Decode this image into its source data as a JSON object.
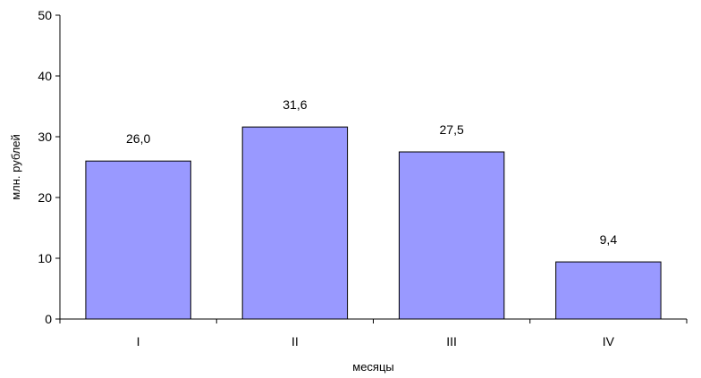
{
  "chart_data": {
    "type": "bar",
    "categories": [
      "I",
      "II",
      "III",
      "IV"
    ],
    "values": [
      26.0,
      31.6,
      27.5,
      9.4
    ],
    "value_labels": [
      "26,0",
      "31,6",
      "27,5",
      "9,4"
    ],
    "title": "",
    "xlabel": "месяцы",
    "ylabel": "млн. рублей",
    "ylim": [
      0,
      50
    ],
    "yticks": [
      0,
      10,
      20,
      30,
      40,
      50
    ],
    "ytick_labels": [
      "0",
      "10",
      "20",
      "30",
      "40",
      "50"
    ],
    "grid": false,
    "legend": "none",
    "bar_color": "#9999ff",
    "bar_edge_color": "#000000"
  }
}
